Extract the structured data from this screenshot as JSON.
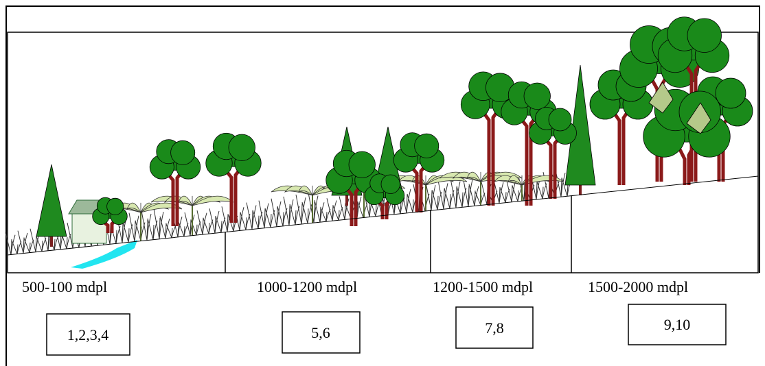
{
  "zones": [
    {
      "label": "500-100 mdpl",
      "box": "1,2,3,4"
    },
    {
      "label": "1000-1200 mdpl",
      "box": "5,6"
    },
    {
      "label": "1200-1500 mdpl",
      "box": "7,8"
    },
    {
      "label": "1500-2000 mdpl",
      "box": "9,10"
    }
  ]
}
